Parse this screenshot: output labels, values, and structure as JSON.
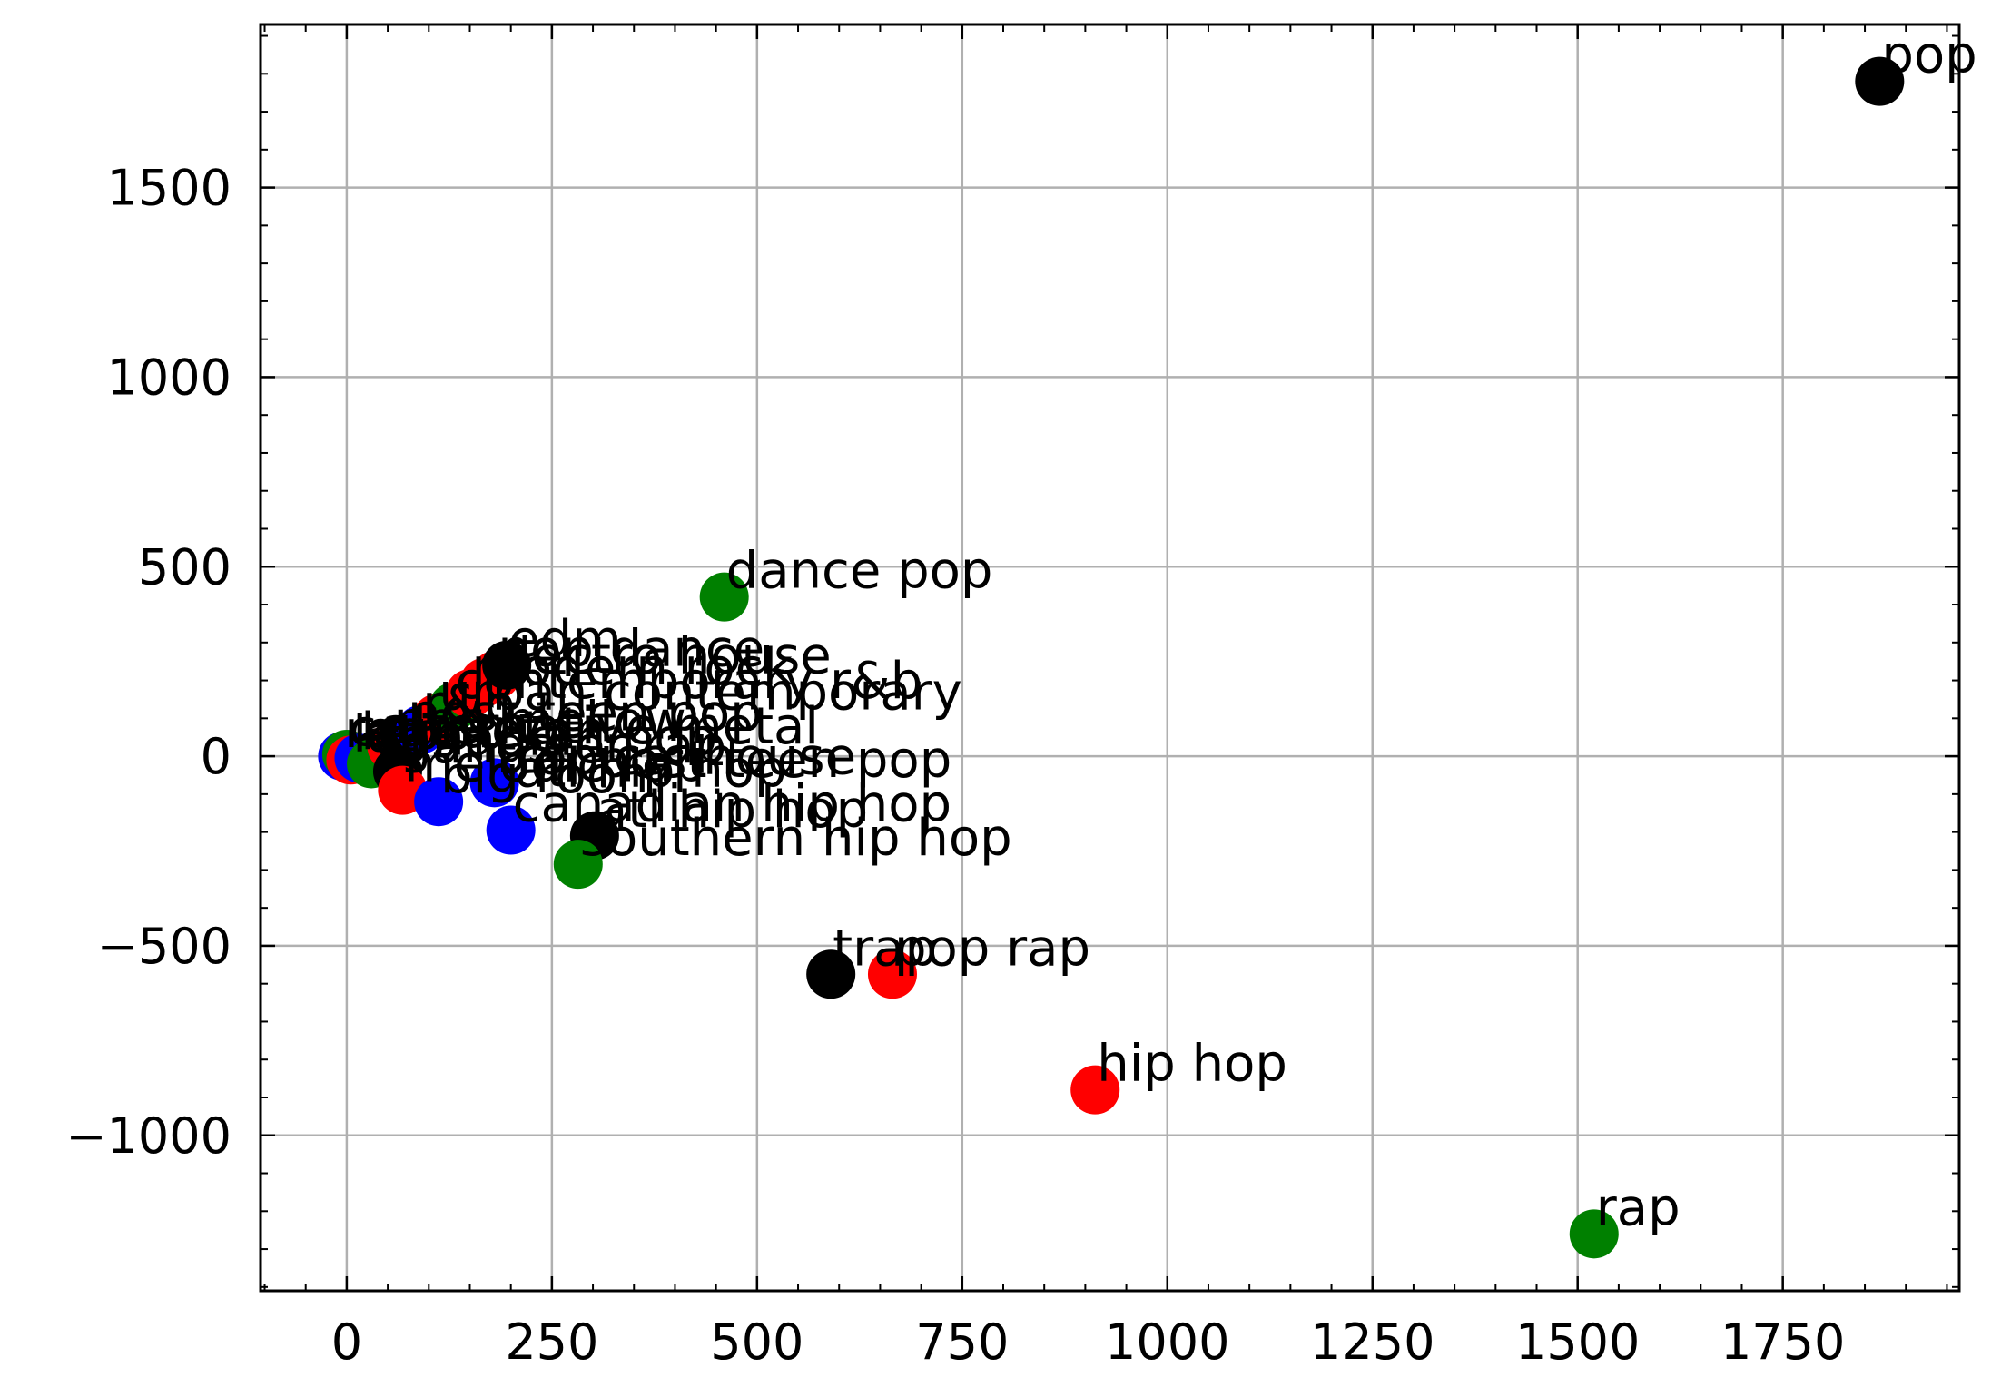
{
  "chart_data": {
    "type": "scatter",
    "title": "",
    "xlabel": "",
    "ylabel": "",
    "xlim": [
      -105,
      1965
    ],
    "ylim": [
      -1410,
      1930
    ],
    "grid": true,
    "x_ticks": [
      0,
      250,
      500,
      750,
      1000,
      1250,
      1500,
      1750
    ],
    "y_ticks": [
      -1000,
      -500,
      0,
      500,
      1000,
      1500
    ],
    "x_tick_labels": [
      "0",
      "250",
      "500",
      "750",
      "1000",
      "1250",
      "1500",
      "1750"
    ],
    "y_tick_labels": [
      "−1000",
      "−500",
      "0",
      "500",
      "1000",
      "1500"
    ],
    "colors": {
      "red": "#ff0000",
      "green": "#008000",
      "blue": "#0000ff",
      "black": "#000000"
    },
    "points": [
      {
        "label": "pop",
        "x": 1868,
        "y": 1780,
        "color": "black"
      },
      {
        "label": "rap",
        "x": 1520,
        "y": -1260,
        "color": "green"
      },
      {
        "label": "hip hop",
        "x": 912,
        "y": -880,
        "color": "red"
      },
      {
        "label": "pop rap",
        "x": 665,
        "y": -575,
        "color": "red"
      },
      {
        "label": "trap",
        "x": 590,
        "y": -575,
        "color": "black"
      },
      {
        "label": "dance pop",
        "x": 460,
        "y": 420,
        "color": "green"
      },
      {
        "label": "southern hip hop",
        "x": 282,
        "y": -285,
        "color": "green"
      },
      {
        "label": "atl hip hop",
        "x": 302,
        "y": -210,
        "color": "black"
      },
      {
        "label": "canadian hip hop",
        "x": 200,
        "y": -195,
        "color": "blue"
      },
      {
        "label": "edm",
        "x": 195,
        "y": 240,
        "color": "black"
      },
      {
        "label": "pop dance",
        "x": 182,
        "y": 215,
        "color": "red"
      },
      {
        "label": "electro house",
        "x": 168,
        "y": 195,
        "color": "red"
      },
      {
        "label": "modern rock",
        "x": 150,
        "y": 165,
        "color": "red"
      },
      {
        "label": "contemporary r&b",
        "x": 130,
        "y": 130,
        "color": "green"
      },
      {
        "label": "urban contemporary",
        "x": 110,
        "y": 100,
        "color": "red"
      },
      {
        "label": "r&b",
        "x": 90,
        "y": 70,
        "color": "blue"
      },
      {
        "label": "post-teen pop",
        "x": 72,
        "y": 45,
        "color": "black"
      },
      {
        "label": "neo mellow",
        "x": 55,
        "y": 25,
        "color": "red"
      },
      {
        "label": "alternative metal",
        "x": 40,
        "y": 10,
        "color": "black"
      },
      {
        "label": "gangster rap",
        "x": 62,
        "y": -40,
        "color": "black"
      },
      {
        "label": "tropical house",
        "x": 180,
        "y": -70,
        "color": "blue"
      },
      {
        "label": "big room",
        "x": 112,
        "y": -120,
        "color": "blue"
      },
      {
        "label": "melodic rap",
        "x": 68,
        "y": -90,
        "color": "red"
      },
      {
        "label": "canadian pop",
        "x": 30,
        "y": -20,
        "color": "green"
      },
      {
        "label": "k-pop",
        "x": 15,
        "y": -5,
        "color": "blue"
      },
      {
        "label": "latin",
        "x": 5,
        "y": -10,
        "color": "red"
      },
      {
        "label": "reggaeton",
        "x": -5,
        "y": 0,
        "color": "blue"
      },
      {
        "label": "country",
        "x": 0,
        "y": 5,
        "color": "green"
      }
    ],
    "cluster_labels": [
      {
        "label": "atl hip hop",
        "x": 205,
        "y": -80,
        "color": "red"
      },
      {
        "label": "post-teen pop",
        "x": 305,
        "y": -55,
        "color": "red"
      }
    ]
  }
}
